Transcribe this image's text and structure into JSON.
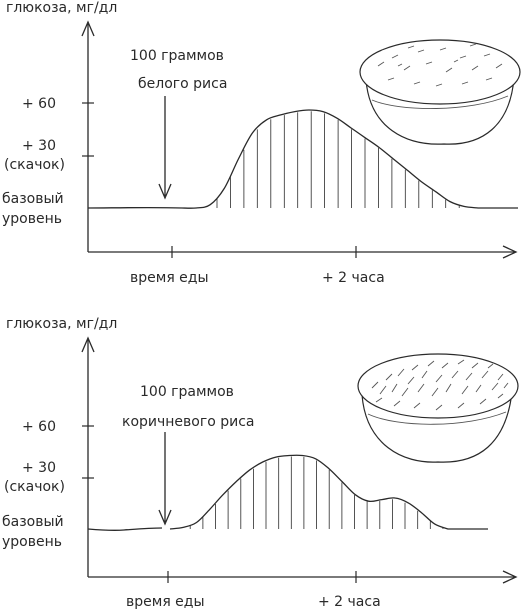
{
  "chart_data": [
    {
      "type": "area",
      "ylabel": "глюкоза, мг/дл",
      "y_tick_labels": [
        "+ 60",
        "+ 30",
        "(скачок)",
        "базовый",
        "уровень"
      ],
      "x_tick_labels": [
        "время еды",
        "+ 2 часа"
      ],
      "annotation": [
        "100 граммов",
        "белого риса"
      ],
      "x": [
        0,
        10,
        20,
        30,
        40,
        50,
        60,
        70,
        80,
        90,
        100,
        110,
        120,
        130,
        140,
        150,
        160,
        170,
        180,
        190,
        200,
        210
      ],
      "series": [
        {
          "values": [
            0,
            0,
            2,
            12,
            30,
            46,
            54,
            57,
            59,
            60,
            59,
            55,
            49,
            43,
            37,
            30,
            23,
            16,
            10,
            4,
            1,
            0
          ]
        }
      ],
      "ylim": [
        -5,
        100
      ],
      "xlim": [
        -40,
        220
      ],
      "image": "bowl-of-white-rice"
    },
    {
      "type": "area",
      "ylabel": "глюкоза, мг/дл",
      "y_tick_labels": [
        "+ 60",
        "+ 30",
        "(скачок)",
        "базовый",
        "уровень"
      ],
      "x_tick_labels": [
        "время еды",
        "+ 2 часа"
      ],
      "annotation": [
        "100 граммов",
        "коричневого риса"
      ],
      "x": [
        0,
        10,
        20,
        30,
        40,
        50,
        60,
        70,
        80,
        90,
        100,
        110,
        120,
        130,
        140,
        150,
        160,
        170,
        180,
        190,
        200,
        210
      ],
      "series": [
        {
          "values": [
            0,
            1,
            4,
            12,
            21,
            29,
            36,
            41,
            44,
            45,
            45,
            43,
            37,
            29,
            21,
            17,
            18,
            19,
            16,
            10,
            3,
            0
          ]
        }
      ],
      "ylim": [
        -5,
        100
      ],
      "xlim": [
        -40,
        220
      ],
      "image": "bowl-of-brown-rice"
    }
  ]
}
